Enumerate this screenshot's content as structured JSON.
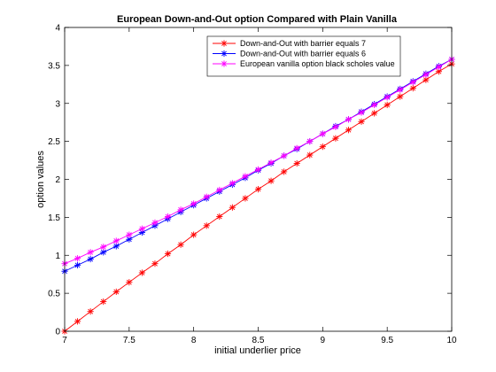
{
  "chart_data": {
    "type": "line",
    "title": "European Down-and-Out option Compared with Plain Vanilla",
    "xlabel": "initial underlier price",
    "ylabel": "option values",
    "xlim": [
      7,
      10
    ],
    "ylim": [
      0,
      4
    ],
    "x_ticks": [
      7,
      7.5,
      8,
      8.5,
      9,
      9.5,
      10
    ],
    "x_tick_labels": [
      "7",
      "7.5",
      "8",
      "8.5",
      "9",
      "9.5",
      "10"
    ],
    "y_ticks": [
      0,
      0.5,
      1,
      1.5,
      2,
      2.5,
      3,
      3.5,
      4
    ],
    "y_tick_labels": [
      "0",
      "0.5",
      "1",
      "1.5",
      "2",
      "2.5",
      "3",
      "3.5",
      "4"
    ],
    "grid": false,
    "legend_position": "top-right",
    "x": [
      7.0,
      7.1,
      7.2,
      7.3,
      7.4,
      7.5,
      7.6,
      7.7,
      7.8,
      7.9,
      8.0,
      8.1,
      8.2,
      8.3,
      8.4,
      8.5,
      8.6,
      8.7,
      8.8,
      8.9,
      9.0,
      9.1,
      9.2,
      9.3,
      9.4,
      9.5,
      9.6,
      9.7,
      9.8,
      9.9,
      10.0
    ],
    "series": [
      {
        "name": "Down-and-Out with barrier equals 7",
        "color": "#ff0000",
        "marker": "asterisk",
        "values": [
          0.0,
          0.13,
          0.26,
          0.39,
          0.52,
          0.645,
          0.77,
          0.89,
          1.02,
          1.14,
          1.27,
          1.39,
          1.51,
          1.63,
          1.75,
          1.87,
          1.98,
          2.1,
          2.21,
          2.32,
          2.43,
          2.54,
          2.65,
          2.76,
          2.87,
          2.98,
          3.09,
          3.2,
          3.31,
          3.42,
          3.52
        ]
      },
      {
        "name": "Down-and-Out with barrier equals 6",
        "color": "#0000ff",
        "marker": "asterisk",
        "values": [
          0.79,
          0.87,
          0.95,
          1.04,
          1.12,
          1.21,
          1.3,
          1.39,
          1.48,
          1.57,
          1.66,
          1.75,
          1.84,
          1.93,
          2.02,
          2.12,
          2.21,
          2.31,
          2.4,
          2.5,
          2.6,
          2.7,
          2.79,
          2.89,
          2.99,
          3.09,
          3.19,
          3.29,
          3.39,
          3.49,
          3.58
        ]
      },
      {
        "name": "European vanilla option black scholes value",
        "color": "#ff00ff",
        "marker": "asterisk",
        "values": [
          0.89,
          0.96,
          1.04,
          1.11,
          1.19,
          1.27,
          1.35,
          1.43,
          1.51,
          1.6,
          1.68,
          1.77,
          1.86,
          1.95,
          2.04,
          2.13,
          2.22,
          2.31,
          2.41,
          2.5,
          2.6,
          2.69,
          2.79,
          2.88,
          2.98,
          3.08,
          3.18,
          3.28,
          3.38,
          3.48,
          3.58
        ]
      }
    ]
  }
}
